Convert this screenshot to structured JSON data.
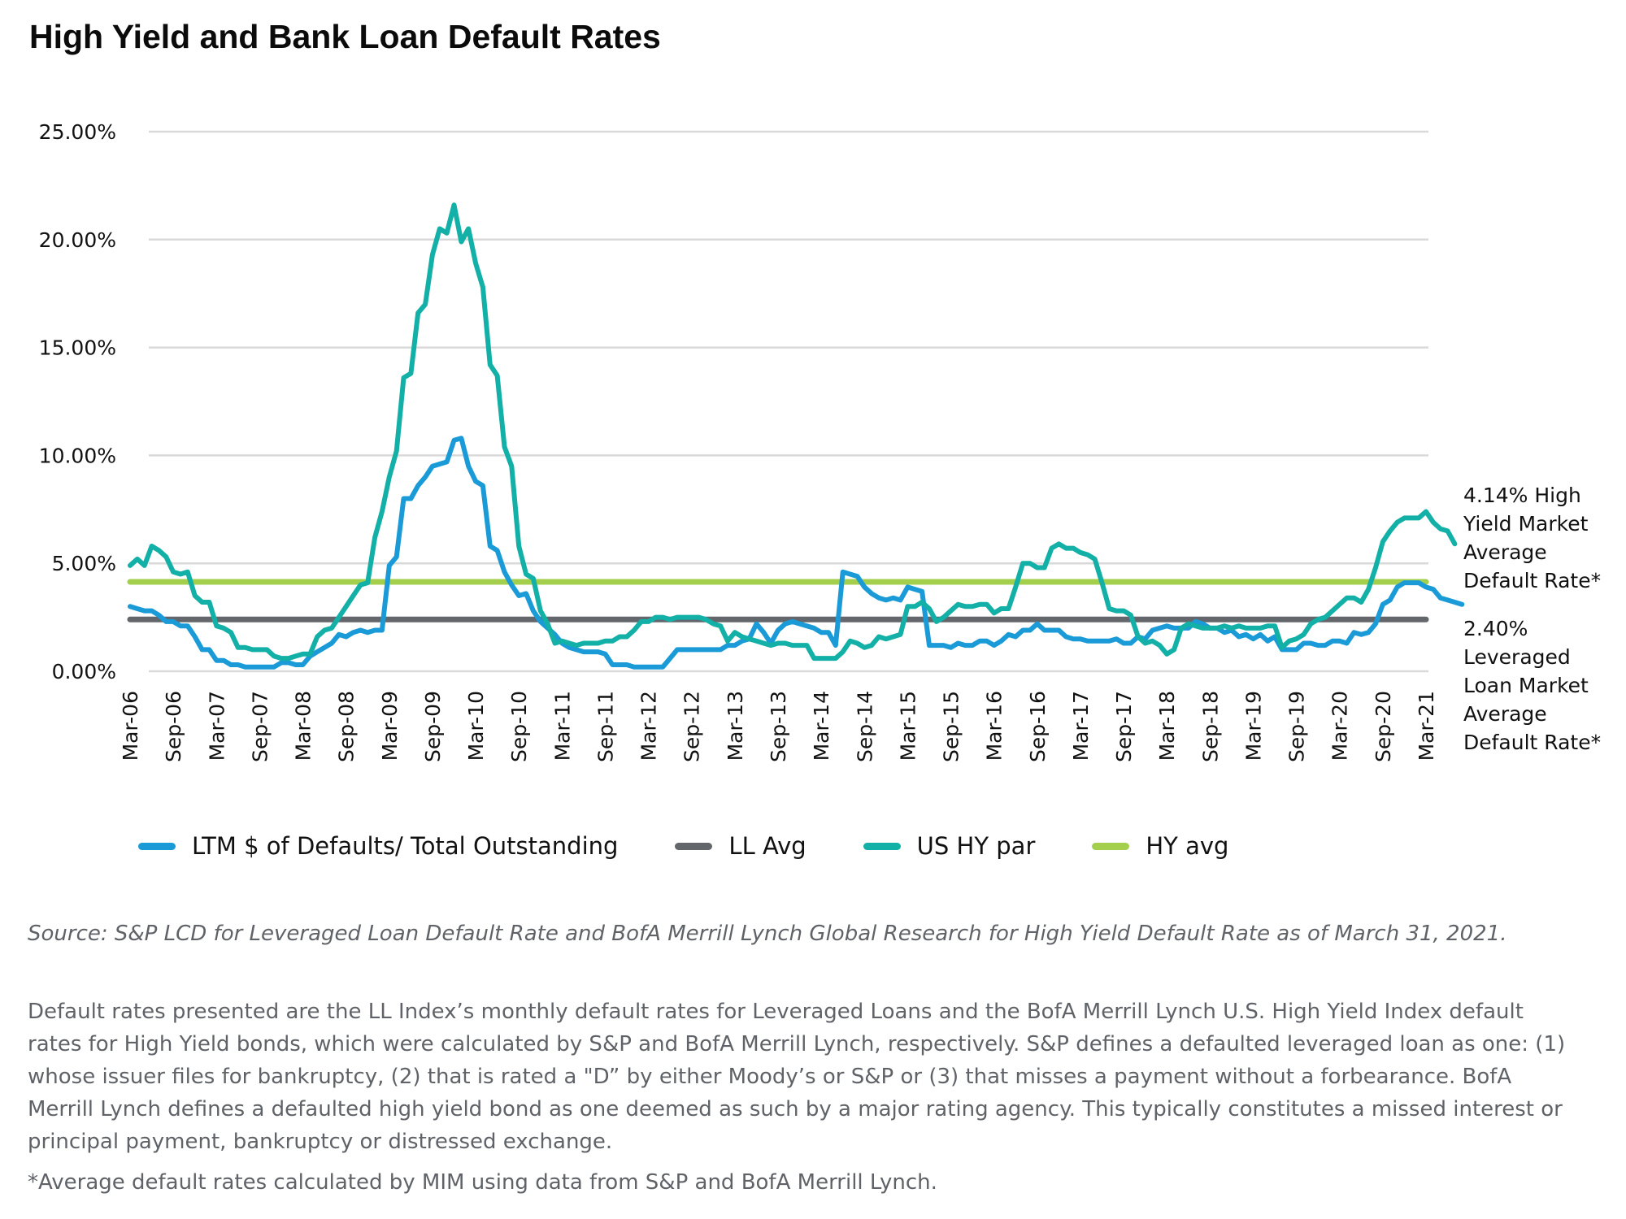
{
  "title": "High Yield and Bank Loan Default Rates",
  "annotations": {
    "hy": [
      "4.14% High",
      "Yield Market",
      "Average",
      "Default Rate*"
    ],
    "ll": [
      "2.40%",
      "Leveraged",
      "Loan Market",
      "Average",
      "Default Rate*"
    ]
  },
  "legend": [
    {
      "label": "LTM $ of Defaults/ Total Outstanding",
      "color": "#1a9bd7"
    },
    {
      "label": "LL Avg",
      "color": "#63666a"
    },
    {
      "label": "US HY par",
      "color": "#12b0a6"
    },
    {
      "label": "HY avg",
      "color": "#a3cf4d"
    }
  ],
  "footer": {
    "source": "Source: S&P LCD for Leveraged Loan Default Rate and BofA Merrill Lynch Global Research for High Yield Default Rate as of March 31, 2021.",
    "body": "Default rates presented are the LL Index’s monthly default rates for Leveraged Loans and the BofA Merrill Lynch U.S. High Yield Index default rates for High Yield bonds, which were calculated by S&P and BofA Merrill Lynch, respectively. S&P defines a defaulted leveraged loan as one: (1) whose issuer files for bankruptcy, (2) that is rated a \"D” by either Moody’s or S&P or (3) that misses a payment without a forbearance. BofA Merrill Lynch defines a defaulted high yield bond as one deemed as such by a major rating agency. This typically constitutes a missed interest or principal payment, bankruptcy or distressed exchange.",
    "footnote": "*Average default rates calculated by MIM using data from S&P and BofA Merrill Lynch."
  },
  "chart_data": {
    "type": "line",
    "title": "High Yield and Bank Loan Default Rates",
    "xlabel": "",
    "ylabel": "",
    "x_start": "Mar-06",
    "x_end": "Mar-21",
    "x_frequency": "monthly",
    "x_tick_labels": [
      "Mar-06",
      "Sep-06",
      "Mar-07",
      "Sep-07",
      "Mar-08",
      "Sep-08",
      "Mar-09",
      "Sep-09",
      "Mar-10",
      "Sep-10",
      "Mar-11",
      "Sep-11",
      "Mar-12",
      "Sep-12",
      "Mar-13",
      "Sep-13",
      "Mar-14",
      "Sep-14",
      "Mar-15",
      "Sep-15",
      "Mar-16",
      "Sep-16",
      "Mar-17",
      "Sep-17",
      "Mar-18",
      "Sep-18",
      "Mar-19",
      "Sep-19",
      "Mar-20",
      "Sep-20",
      "Mar-21"
    ],
    "y_tick_labels": [
      "0.00%",
      "5.00%",
      "10.00%",
      "15.00%",
      "20.00%",
      "25.00%"
    ],
    "y_ticks": [
      0,
      5,
      10,
      15,
      20,
      25
    ],
    "ylim": [
      0,
      25
    ],
    "y_unit": "%",
    "grid": "horizontal",
    "legend_position": "bottom",
    "series": [
      {
        "name": "LTM $ of Defaults/ Total Outstanding",
        "color": "#1a9bd7",
        "values": [
          3.0,
          2.9,
          2.8,
          2.8,
          2.6,
          2.3,
          2.3,
          2.1,
          2.1,
          1.6,
          1.0,
          1.0,
          0.5,
          0.5,
          0.3,
          0.3,
          0.2,
          0.2,
          0.2,
          0.2,
          0.2,
          0.4,
          0.4,
          0.3,
          0.3,
          0.7,
          0.9,
          1.1,
          1.3,
          1.7,
          1.6,
          1.8,
          1.9,
          1.8,
          1.9,
          1.9,
          4.9,
          5.3,
          8.0,
          8.0,
          8.6,
          9.0,
          9.5,
          9.6,
          9.7,
          10.7,
          10.8,
          9.5,
          8.8,
          8.6,
          5.8,
          5.6,
          4.6,
          4.0,
          3.5,
          3.6,
          2.8,
          2.3,
          2.0,
          1.7,
          1.3,
          1.1,
          1.0,
          0.9,
          0.9,
          0.9,
          0.8,
          0.3,
          0.3,
          0.3,
          0.2,
          0.2,
          0.2,
          0.2,
          0.2,
          0.6,
          1.0,
          1.0,
          1.0,
          1.0,
          1.0,
          1.0,
          1.0,
          1.2,
          1.2,
          1.4,
          1.5,
          2.2,
          1.8,
          1.3,
          1.9,
          2.2,
          2.3,
          2.2,
          2.1,
          2.0,
          1.8,
          1.8,
          1.2,
          4.6,
          4.5,
          4.4,
          3.9,
          3.6,
          3.4,
          3.3,
          3.4,
          3.3,
          3.9,
          3.8,
          3.7,
          1.2,
          1.2,
          1.2,
          1.1,
          1.3,
          1.2,
          1.2,
          1.4,
          1.4,
          1.2,
          1.4,
          1.7,
          1.6,
          1.9,
          1.9,
          2.2,
          1.9,
          1.9,
          1.9,
          1.6,
          1.5,
          1.5,
          1.4,
          1.4,
          1.4,
          1.4,
          1.5,
          1.3,
          1.3,
          1.6,
          1.5,
          1.9,
          2.0,
          2.1,
          2.0,
          2.0,
          2.0,
          2.3,
          2.2,
          2.0,
          2.0,
          1.8,
          1.9,
          1.6,
          1.7,
          1.5,
          1.7,
          1.4,
          1.6,
          1.0,
          1.0,
          1.0,
          1.3,
          1.3,
          1.2,
          1.2,
          1.4,
          1.4,
          1.3,
          1.8,
          1.7,
          1.8,
          2.2,
          3.1,
          3.3,
          3.9,
          4.1,
          4.1,
          4.1,
          3.9,
          3.8,
          3.4,
          3.3,
          3.2,
          3.1
        ]
      },
      {
        "name": "LL Avg",
        "color": "#63666a",
        "constant": 2.4
      },
      {
        "name": "US HY par",
        "color": "#12b0a6",
        "values": [
          4.9,
          5.2,
          4.9,
          5.8,
          5.6,
          5.3,
          4.6,
          4.5,
          4.6,
          3.5,
          3.2,
          3.2,
          2.1,
          2.0,
          1.8,
          1.1,
          1.1,
          1.0,
          1.0,
          1.0,
          0.7,
          0.6,
          0.6,
          0.7,
          0.8,
          0.8,
          1.6,
          1.9,
          2.0,
          2.5,
          3.0,
          3.5,
          4.0,
          4.1,
          6.2,
          7.4,
          9.0,
          10.2,
          13.6,
          13.8,
          16.6,
          17.0,
          19.3,
          20.5,
          20.3,
          21.6,
          19.9,
          20.5,
          18.9,
          17.8,
          14.2,
          13.7,
          10.4,
          9.5,
          5.8,
          4.5,
          4.3,
          2.8,
          2.2,
          1.3,
          1.4,
          1.3,
          1.2,
          1.3,
          1.3,
          1.3,
          1.4,
          1.4,
          1.6,
          1.6,
          1.9,
          2.3,
          2.3,
          2.5,
          2.5,
          2.4,
          2.5,
          2.5,
          2.5,
          2.5,
          2.4,
          2.2,
          2.1,
          1.4,
          1.8,
          1.6,
          1.5,
          1.4,
          1.3,
          1.2,
          1.3,
          1.3,
          1.2,
          1.2,
          1.2,
          0.6,
          0.6,
          0.6,
          0.6,
          0.9,
          1.4,
          1.3,
          1.1,
          1.2,
          1.6,
          1.5,
          1.6,
          1.7,
          3.0,
          3.0,
          3.2,
          2.9,
          2.3,
          2.5,
          2.8,
          3.1,
          3.0,
          3.0,
          3.1,
          3.1,
          2.7,
          2.9,
          2.9,
          3.9,
          5.0,
          5.0,
          4.8,
          4.8,
          5.7,
          5.9,
          5.7,
          5.7,
          5.5,
          5.4,
          5.2,
          4.1,
          2.9,
          2.8,
          2.8,
          2.6,
          1.6,
          1.3,
          1.4,
          1.2,
          0.8,
          1.0,
          2.0,
          2.2,
          2.1,
          2.0,
          2.0,
          2.0,
          2.1,
          2.0,
          2.1,
          2.0,
          2.0,
          2.0,
          2.1,
          2.1,
          1.1,
          1.4,
          1.5,
          1.7,
          2.2,
          2.4,
          2.5,
          2.8,
          3.1,
          3.4,
          3.4,
          3.2,
          3.8,
          4.8,
          6.0,
          6.5,
          6.9,
          7.1,
          7.1,
          7.1,
          7.4,
          6.9,
          6.6,
          6.5,
          5.9
        ]
      },
      {
        "name": "HY avg",
        "color": "#a3cf4d",
        "constant": 4.14
      }
    ]
  }
}
